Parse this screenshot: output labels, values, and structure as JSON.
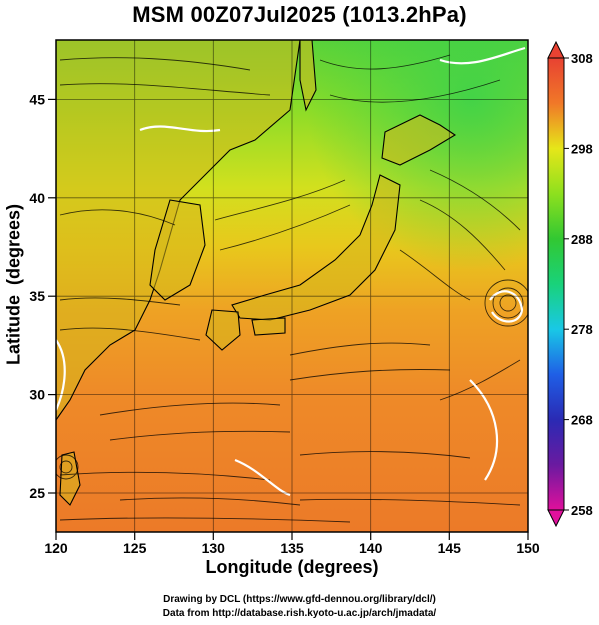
{
  "title": "MSM 00Z07Jul2025 (1013.2hPa)",
  "x_axis": {
    "label": "Longitude (degrees)",
    "ticks": [
      "120",
      "125",
      "130",
      "135",
      "140",
      "145",
      "150"
    ],
    "range": [
      120,
      150
    ]
  },
  "y_axis": {
    "label": "Latitude  (degrees)",
    "ticks": [
      "25",
      "30",
      "35",
      "40",
      "45"
    ],
    "range": [
      23,
      48
    ]
  },
  "colorbar": {
    "ticks": [
      "308",
      "298",
      "288",
      "278",
      "268",
      "258"
    ],
    "range": [
      258,
      308
    ],
    "colors": [
      "#e0109c",
      "#4028c8",
      "#1f5fe6",
      "#19c8e6",
      "#19d27a",
      "#32c832",
      "#8ee01e",
      "#e6e619",
      "#f5b41e",
      "#f07828",
      "#e84232"
    ]
  },
  "credits": {
    "drawing": "Drawing by DCL (https://www.gfd-dennou.org/library/dcl/)",
    "data": "Data from http://database.rish.kyoto-u.ac.jp/arch/jmadata/"
  }
}
